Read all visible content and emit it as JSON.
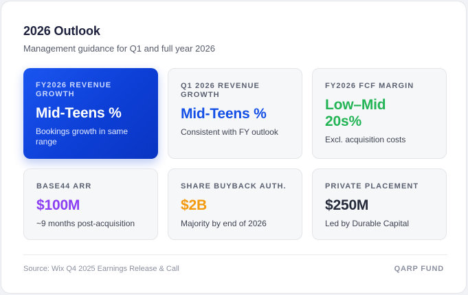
{
  "header": {
    "title": "2026 Outlook",
    "subtitle": "Management guidance for Q1 and full year 2026"
  },
  "tiles": [
    {
      "label": "FY2026 Revenue Growth",
      "value": "Mid-Teens %",
      "note": "Bookings growth in same range",
      "value_color": "#ffffff",
      "featured": true
    },
    {
      "label": "Q1 2026 Revenue Growth",
      "value": "Mid-Teens %",
      "note": "Consistent with FY outlook",
      "value_color": "#1450e6"
    },
    {
      "label": "FY2026 FCF Margin",
      "value": "Low–Mid 20s%",
      "note": "Excl. acquisition costs",
      "value_color": "#23b456"
    },
    {
      "label": "Base44 ARR",
      "value": "$100M",
      "note": "~9 months post-acquisition",
      "value_color": "#8b3ef2"
    },
    {
      "label": "Share Buyback Auth.",
      "value": "$2B",
      "note": "Majority by end of 2026",
      "value_color": "#f29a0c"
    },
    {
      "label": "Private Placement",
      "value": "$250M",
      "note": "Led by Durable Capital",
      "value_color": "#252a3a"
    }
  ],
  "footer": {
    "source": "Source: Wix Q4 2025 Earnings Release & Call",
    "brand": "QARP FUND"
  }
}
